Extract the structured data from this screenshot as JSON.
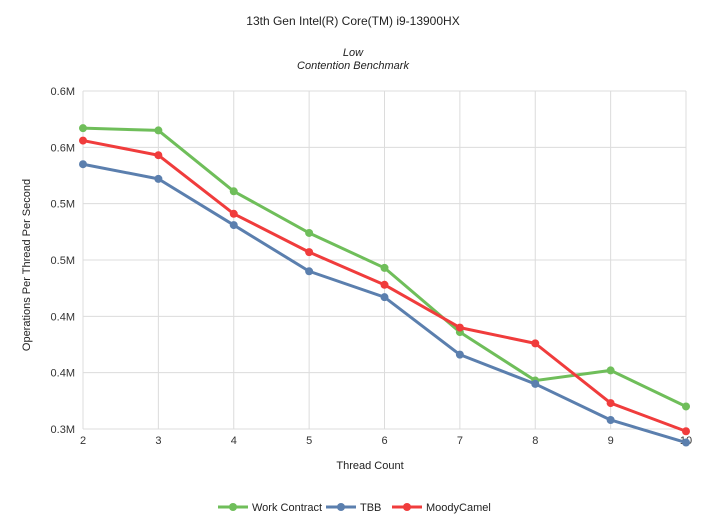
{
  "chart_data": {
    "type": "line",
    "title": "13th Gen Intel(R) Core(TM) i9-13900HX",
    "subtitle_lines": [
      "Low",
      "Contention Benchmark"
    ],
    "xlabel": "Thread Count",
    "ylabel": "Operations Per Thread Per Second",
    "x": [
      2,
      3,
      4,
      5,
      6,
      7,
      8,
      9,
      10
    ],
    "ylim": [
      0.3,
      0.6
    ],
    "y_ticks": [
      0.6,
      0.54,
      0.48,
      0.42,
      0.36,
      0.3
    ],
    "y_tick_labels": [
      "0.6M",
      "0.6M",
      "0.5M",
      "0.5M",
      "0.4M",
      "0.4M",
      "0.3M"
    ],
    "y_tick_values": [
      0.6,
      0.55,
      0.5,
      0.45,
      0.4,
      0.35,
      0.3
    ],
    "grid": true,
    "legend_position": "bottom",
    "series": [
      {
        "name": "Work Contract",
        "color": "#6fbe5a",
        "values": [
          0.567,
          0.565,
          0.511,
          0.474,
          0.443,
          0.386,
          0.343,
          0.352,
          0.32
        ]
      },
      {
        "name": "TBB",
        "color": "#5b7fae",
        "values": [
          0.535,
          0.522,
          0.481,
          0.44,
          0.417,
          0.366,
          0.34,
          0.308,
          0.288
        ]
      },
      {
        "name": "MoodyCamel",
        "color": "#f03c3c",
        "values": [
          0.556,
          0.543,
          0.491,
          0.457,
          0.428,
          0.39,
          0.376,
          0.323,
          0.298
        ]
      }
    ]
  }
}
